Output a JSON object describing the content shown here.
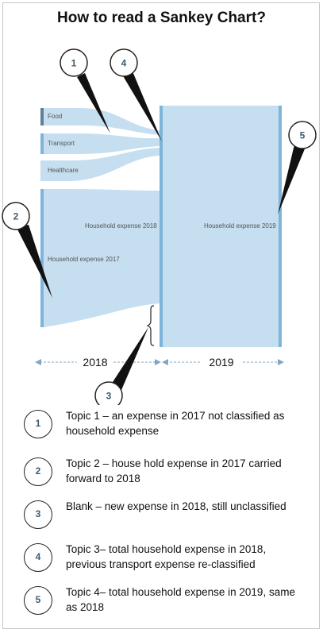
{
  "title": "How to read a Sankey Chart?",
  "nodes": {
    "food": "Food",
    "transport": "Transport",
    "healthcare": "Healthcare",
    "household_2017": "Household expense 2017",
    "household_2018": "Household expense 2018",
    "household_2019": "Household expense 2019"
  },
  "axis": {
    "left_label": "2018",
    "right_label": "2019"
  },
  "markers": [
    "1",
    "2",
    "3",
    "4",
    "5"
  ],
  "legend": [
    {
      "num": "1",
      "text": "Topic 1 – an expense in 2017 not classified as household expense"
    },
    {
      "num": "2",
      "text": "Topic 2 – house hold expense in 2017 carried forward to 2018"
    },
    {
      "num": "3",
      "text": "Blank – new expense in 2018, still unclassified"
    },
    {
      "num": "4",
      "text": "Topic 3– total household expense in 2018, previous transport expense re-classified"
    },
    {
      "num": "5",
      "text": "Topic 4– total household expense in 2019, same as 2018"
    }
  ],
  "colors": {
    "flow": "#c5def0",
    "node": "#7fb4d9",
    "node_dark": "#5f7f99",
    "marker_text": "#3f5b6e",
    "axis_arrow": "#7fa6c6"
  }
}
